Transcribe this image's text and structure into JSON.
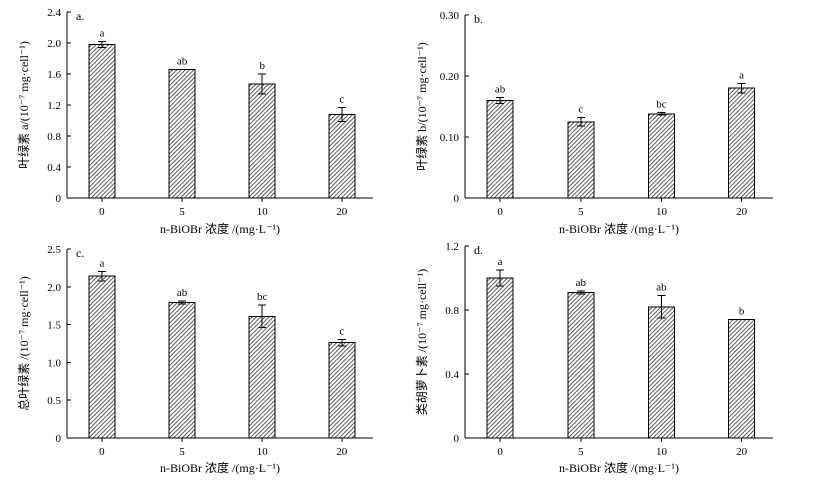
{
  "chart_data": [
    {
      "type": "bar",
      "panel": "a.",
      "categories": [
        "0",
        "5",
        "10",
        "20"
      ],
      "values": [
        1.98,
        1.66,
        1.47,
        1.08
      ],
      "errors": [
        0.04,
        0.0,
        0.13,
        0.09
      ],
      "letters": [
        "a",
        "ab",
        "b",
        "c"
      ],
      "ylim": [
        0,
        2.4
      ],
      "yticks": [
        "0",
        "0.4",
        "0.8",
        "1.2",
        "1.6",
        "2.0",
        "2.4"
      ],
      "ylabel": "叶绿素 a/(10⁻⁷ mg·cell⁻¹)",
      "xlabel": "n-BiOBr 浓度 /(mg·L⁻¹)"
    },
    {
      "type": "bar",
      "panel": "b.",
      "categories": [
        "0",
        "5",
        "10",
        "20"
      ],
      "values": [
        0.16,
        0.125,
        0.138,
        0.18
      ],
      "errors": [
        0.005,
        0.007,
        0.002,
        0.008
      ],
      "letters": [
        "ab",
        "c",
        "bc",
        "a"
      ],
      "ylim": [
        0,
        0.3
      ],
      "yticks": [
        "0",
        "0.10",
        "0.20",
        "0.30"
      ],
      "ylabel": "叶绿素 b/(10⁻⁷ mg·cell⁻¹)",
      "xlabel": "n-BiOBr 浓度 /(mg·L⁻¹)"
    },
    {
      "type": "bar",
      "panel": "c.",
      "categories": [
        "0",
        "5",
        "10",
        "20"
      ],
      "values": [
        2.14,
        1.79,
        1.61,
        1.26
      ],
      "errors": [
        0.06,
        0.02,
        0.15,
        0.04
      ],
      "letters": [
        "a",
        "ab",
        "bc",
        "c"
      ],
      "ylim": [
        0,
        2.5
      ],
      "yticks": [
        "0",
        "0.5",
        "1.0",
        "1.5",
        "2.0",
        "2.5"
      ],
      "ylabel": "总叶绿素 /(10⁻⁷ mg·cell⁻¹)",
      "xlabel": "n-BiOBr 浓度 /(mg·L⁻¹)"
    },
    {
      "type": "bar",
      "panel": "d.",
      "categories": [
        "0",
        "5",
        "10",
        "20"
      ],
      "values": [
        1.0,
        0.91,
        0.82,
        0.74
      ],
      "errors": [
        0.05,
        0.01,
        0.07,
        0.0
      ],
      "letters": [
        "a",
        "ab",
        "ab",
        "b"
      ],
      "ylim": [
        0,
        1.2
      ],
      "yticks": [
        "0",
        "0.4",
        "0.8",
        "1.2"
      ],
      "ylabel": "类胡萝卜素 /(10⁻⁷ mg·cell⁻¹)",
      "xlabel": "n-BiOBr 浓度 /(mg·L⁻¹)"
    }
  ]
}
